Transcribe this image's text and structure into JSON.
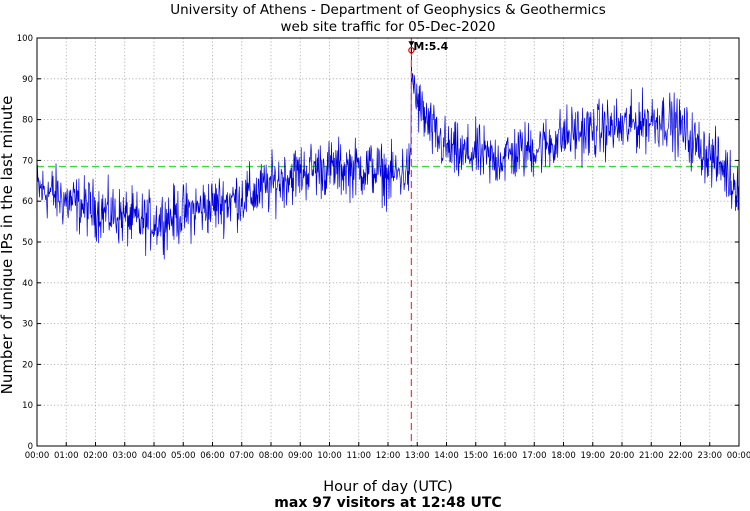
{
  "chart_data": {
    "type": "line",
    "title": "University of Athens - Department of Geophysics & Geothermics",
    "subtitle": "web site traffic for 05-Dec-2020",
    "xlabel": "Hour of day (UTC)",
    "ylabel": "Number of unique IPs in the last minute",
    "footer": "max 97 visitors at 12:48 UTC",
    "xlim": [
      0,
      24
    ],
    "ylim": [
      0,
      100
    ],
    "grid": true,
    "x_ticks": [
      "00:00",
      "01:00",
      "02:00",
      "03:00",
      "04:00",
      "05:00",
      "06:00",
      "07:00",
      "08:00",
      "09:00",
      "10:00",
      "11:00",
      "12:00",
      "13:00",
      "14:00",
      "15:00",
      "16:00",
      "17:00",
      "18:00",
      "19:00",
      "20:00",
      "21:00",
      "22:00",
      "23:00",
      "00:00"
    ],
    "y_ticks": [
      0,
      10,
      20,
      30,
      40,
      50,
      60,
      70,
      80,
      90,
      100
    ],
    "reference_line": {
      "y": 68.5,
      "color": "#33dd33",
      "style": "dashed"
    },
    "event": {
      "x": 12.8,
      "label": "M:5.4",
      "color": "#ee4444",
      "style": "dashed"
    },
    "max_marker": {
      "x": 12.8,
      "y": 97,
      "color": "#dd0000"
    },
    "series": [
      {
        "color": "#0000dd",
        "hourly_trend": [
          {
            "x": 0.0,
            "y": 63
          },
          {
            "x": 0.5,
            "y": 62
          },
          {
            "x": 1.0,
            "y": 60
          },
          {
            "x": 1.5,
            "y": 59
          },
          {
            "x": 2.0,
            "y": 58
          },
          {
            "x": 2.5,
            "y": 57
          },
          {
            "x": 3.0,
            "y": 56
          },
          {
            "x": 3.5,
            "y": 55
          },
          {
            "x": 4.0,
            "y": 55
          },
          {
            "x": 4.5,
            "y": 56
          },
          {
            "x": 5.0,
            "y": 57
          },
          {
            "x": 5.5,
            "y": 58
          },
          {
            "x": 6.0,
            "y": 59
          },
          {
            "x": 6.5,
            "y": 60
          },
          {
            "x": 7.0,
            "y": 61
          },
          {
            "x": 7.5,
            "y": 62
          },
          {
            "x": 8.0,
            "y": 64
          },
          {
            "x": 8.5,
            "y": 66
          },
          {
            "x": 9.0,
            "y": 67
          },
          {
            "x": 9.5,
            "y": 68
          },
          {
            "x": 10.0,
            "y": 68
          },
          {
            "x": 10.5,
            "y": 68
          },
          {
            "x": 11.0,
            "y": 68
          },
          {
            "x": 11.5,
            "y": 68
          },
          {
            "x": 12.0,
            "y": 66
          },
          {
            "x": 12.5,
            "y": 67
          },
          {
            "x": 12.79,
            "y": 68
          },
          {
            "x": 12.8,
            "y": 92
          },
          {
            "x": 13.0,
            "y": 84
          },
          {
            "x": 13.5,
            "y": 77
          },
          {
            "x": 14.0,
            "y": 73
          },
          {
            "x": 14.5,
            "y": 71
          },
          {
            "x": 15.0,
            "y": 72
          },
          {
            "x": 15.5,
            "y": 70
          },
          {
            "x": 16.0,
            "y": 71
          },
          {
            "x": 16.5,
            "y": 72
          },
          {
            "x": 17.0,
            "y": 73
          },
          {
            "x": 17.5,
            "y": 74
          },
          {
            "x": 18.0,
            "y": 76
          },
          {
            "x": 18.5,
            "y": 77
          },
          {
            "x": 19.0,
            "y": 77
          },
          {
            "x": 19.5,
            "y": 78
          },
          {
            "x": 20.0,
            "y": 78
          },
          {
            "x": 20.5,
            "y": 79
          },
          {
            "x": 21.0,
            "y": 80
          },
          {
            "x": 21.5,
            "y": 80
          },
          {
            "x": 22.0,
            "y": 78
          },
          {
            "x": 22.5,
            "y": 74
          },
          {
            "x": 23.0,
            "y": 71
          },
          {
            "x": 23.5,
            "y": 68
          },
          {
            "x": 23.8,
            "y": 64
          },
          {
            "x": 24.0,
            "y": 65
          }
        ],
        "noise_amplitude": 5
      }
    ]
  }
}
